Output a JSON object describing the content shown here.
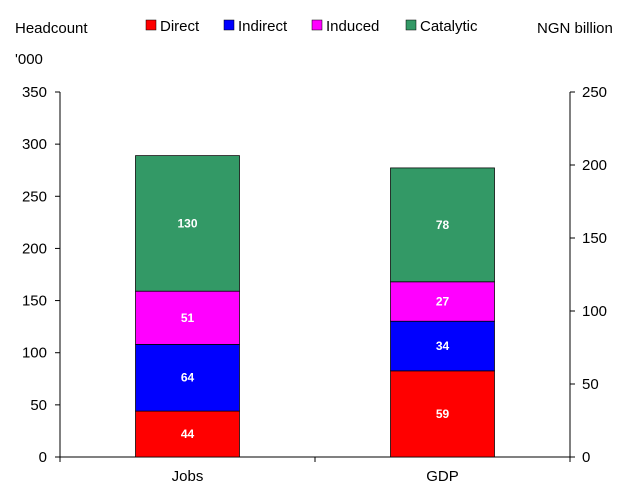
{
  "chart_data": {
    "type": "bar",
    "stacked": true,
    "categories": [
      "Jobs",
      "GDP"
    ],
    "series": [
      {
        "name": "Direct",
        "color": "#ff0000",
        "values": [
          44,
          59
        ]
      },
      {
        "name": "Indirect",
        "color": "#0000ff",
        "values": [
          64,
          34
        ]
      },
      {
        "name": "Induced",
        "color": "#ff00ff",
        "values": [
          51,
          27
        ]
      },
      {
        "name": "Catalytic",
        "color": "#339966",
        "values": [
          130,
          78
        ]
      }
    ],
    "axes": {
      "left": {
        "label_line1": "Headcount",
        "label_line2": "'000",
        "min": 0,
        "max": 350,
        "ticks": [
          "0",
          "50",
          "100",
          "150",
          "200",
          "250",
          "300",
          "350"
        ]
      },
      "right": {
        "label": "NGN billion",
        "min": 0,
        "max": 250,
        "ticks": [
          "0",
          "50",
          "100",
          "150",
          "200",
          "250"
        ]
      }
    },
    "axis_by_category": [
      "left",
      "right"
    ],
    "legend": {
      "position": "top"
    },
    "grid": false
  }
}
